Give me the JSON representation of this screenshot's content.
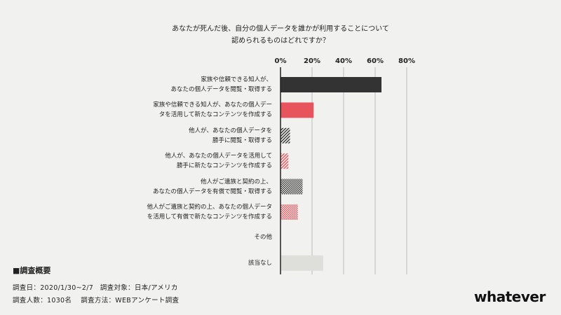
{
  "chart_data": {
    "type": "bar",
    "orientation": "horizontal",
    "title_lines": [
      "あなたが死んだ後、自分の個人データを誰かが利用することについて",
      "認められるものはどれですか？"
    ],
    "xlim": [
      0,
      80
    ],
    "ticks": [
      {
        "value": 0,
        "label": "0%"
      },
      {
        "value": 20,
        "label": "20%"
      },
      {
        "value": 40,
        "label": "40%"
      },
      {
        "value": 60,
        "label": "60%"
      },
      {
        "value": 80,
        "label": "80%"
      }
    ],
    "grid": true,
    "categories": [
      {
        "lines": [
          "家族や信頼できる知人が、",
          "あなたの個人データを閲覧・取得する"
        ],
        "value": 64,
        "style": "solid-dark"
      },
      {
        "lines": [
          "家族や信頼できる知人が、あなたの個人デー",
          "タを活用して新たなコンテンツを作成する"
        ],
        "value": 21,
        "style": "solid-red"
      },
      {
        "lines": [
          "他人が、あなたの個人データを",
          "勝手に閲覧・取得する"
        ],
        "value": 6,
        "style": "hatch-dark"
      },
      {
        "lines": [
          "他人が、あなたの個人データを活用して",
          "勝手に新たなコンテンツを作成する"
        ],
        "value": 5,
        "style": "hatch-red"
      },
      {
        "lines": [
          "他人がご遺族と契約の上、",
          "あなたの個人データを有償で閲覧・取得する"
        ],
        "value": 14,
        "style": "check-dark"
      },
      {
        "lines": [
          "他人がご遺族と契約の上、あなたの個人データ",
          "を活用して有償で新たなコンテンツを作成する"
        ],
        "value": 11,
        "style": "check-red"
      },
      {
        "lines": [
          "その他"
        ],
        "value": 0,
        "style": "none"
      },
      {
        "lines": [
          "該当なし"
        ],
        "value": 27,
        "style": "solid-grey"
      }
    ],
    "colors": {
      "dark": "#333333",
      "red": "#e8545c",
      "grey": "#dededb",
      "grid": "#bcbcbc",
      "axis": "#222222"
    }
  },
  "survey": {
    "heading": "■調査概要",
    "line1": "調査日：2020/1/30~2/7　調査対象：日本/アメリカ",
    "line2": "調査人数：1030名　 調査方法：WEBアンケート調査"
  },
  "brand": {
    "logo_text": "whatever"
  }
}
